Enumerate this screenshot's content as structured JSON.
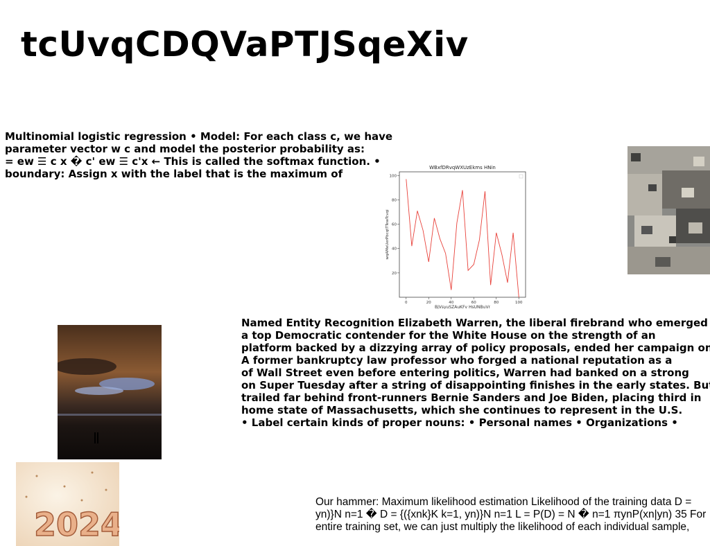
{
  "title": "tcUvqCDQVaPTJSqeXiv",
  "block1": {
    "lines": [
      "Multinomial logistic regression • Model: For each class c, we have",
      "parameter vector w c and model the posterior probability as:",
      "= ew ☰ c x � c' ew ☰ c'x ← This is called the softmax function. •",
      "boundary: Assign x with the label that is the maximum of"
    ]
  },
  "block2": {
    "lines": [
      "Named Entity Recognition Elizabeth Warren, the liberal firebrand who emerged",
      "a top Democratic contender for the White House on the strength of an",
      "platform backed by a dizzying array of policy proposals, ended her campaign on",
      "A former bankruptcy law professor who forged a national reputation as a",
      "of Wall Street even before entering politics, Warren had banked on a strong",
      "on Super Tuesday after a string of disappointing finishes in the early states. But",
      "trailed far behind front-runners Bernie Sanders and Joe Biden, placing third in",
      "home state of Massachusetts, which she continues to represent in the U.S.",
      "• Label certain kinds of proper nouns: • Personal names • Organizations •"
    ]
  },
  "block3": {
    "lines": [
      "Our hammer: Maximum likelihood estimation Likelihood of the training data D =",
      "yn)}N n=1 � D = {({xnk}K k=1, yn)}N n=1 L = P(D) = N � n=1 πynP(xn|yn) 35 For",
      "entire training set, we can just multiply the likelihood of each individual sample,"
    ]
  },
  "images": {
    "city": "aerial-city-photo",
    "sunset": "stormy-sky-sea-photo",
    "year": "2024-numbers-photo",
    "year_text": "2024"
  },
  "chart_data": {
    "type": "line",
    "title": "WBxfDRvqWXUzEkms HNin",
    "xlabel": "BjVsyuSZAuKFv HsUNBuVr",
    "ylabel": "wqAMeUerPbcqtTTewTcvqi",
    "x": [
      0,
      5,
      10,
      15,
      20,
      25,
      30,
      35,
      40,
      45,
      50,
      55,
      60,
      65,
      70,
      75,
      80,
      85,
      90,
      95,
      100
    ],
    "values": [
      97,
      42,
      71,
      55,
      29,
      65,
      48,
      36,
      6,
      61,
      88,
      22,
      27,
      47,
      87,
      10,
      53,
      35,
      12,
      53,
      0
    ],
    "xticks": [
      0,
      20,
      40,
      60,
      80,
      100
    ],
    "yticks": [
      20,
      40,
      60,
      80,
      100
    ],
    "xlim": [
      -6,
      106
    ],
    "ylim": [
      0,
      103
    ],
    "color": "#e8413a",
    "grid": false
  }
}
